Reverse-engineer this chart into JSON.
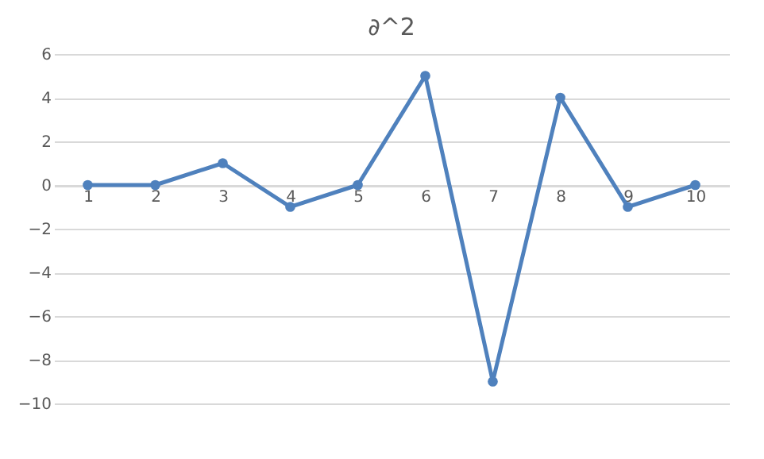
{
  "chart_data": {
    "type": "line",
    "title": "∂^2",
    "categories": [
      "1",
      "2",
      "3",
      "4",
      "5",
      "6",
      "7",
      "8",
      "9",
      "10"
    ],
    "series": [
      {
        "color": "#4f81bd",
        "values": [
          0,
          0,
          1,
          -1,
          0,
          5,
          -9,
          4,
          -1,
          0
        ]
      }
    ],
    "ylim": [
      -10,
      6
    ],
    "yticks": [
      -10,
      -8,
      -6,
      -4,
      -2,
      0,
      2,
      4,
      6
    ],
    "grid": "y",
    "marker": "circle",
    "line_style": "solid"
  }
}
